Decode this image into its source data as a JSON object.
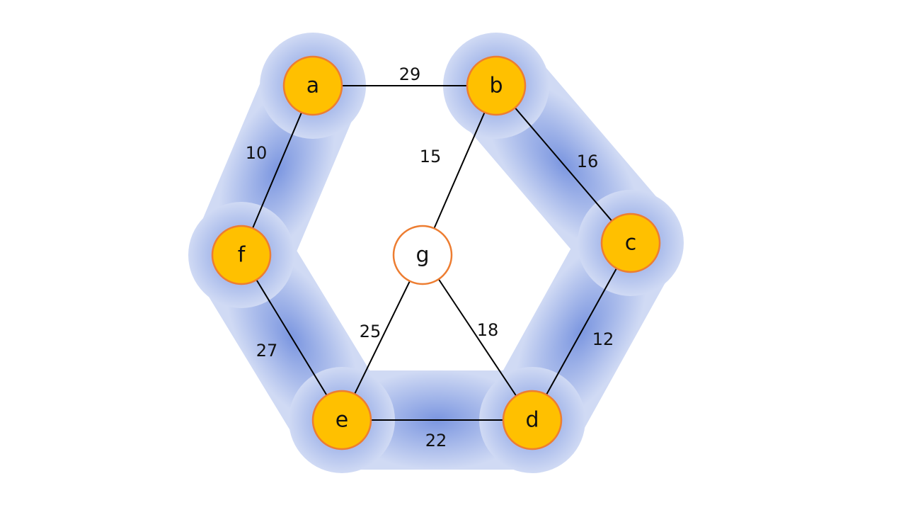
{
  "graph": {
    "nodes": [
      {
        "id": "a",
        "label": "a",
        "highlighted": true
      },
      {
        "id": "b",
        "label": "b",
        "highlighted": true
      },
      {
        "id": "c",
        "label": "c",
        "highlighted": true
      },
      {
        "id": "d",
        "label": "d",
        "highlighted": true
      },
      {
        "id": "e",
        "label": "e",
        "highlighted": true
      },
      {
        "id": "f",
        "label": "f",
        "highlighted": true
      },
      {
        "id": "g",
        "label": "g",
        "highlighted": false
      }
    ],
    "edges": [
      {
        "from": "a",
        "to": "b",
        "weight": "29",
        "in_tree": false
      },
      {
        "from": "a",
        "to": "f",
        "weight": "10",
        "in_tree": true
      },
      {
        "from": "b",
        "to": "c",
        "weight": "16",
        "in_tree": true
      },
      {
        "from": "b",
        "to": "g",
        "weight": "15",
        "in_tree": false
      },
      {
        "from": "c",
        "to": "d",
        "weight": "12",
        "in_tree": true
      },
      {
        "from": "g",
        "to": "e",
        "weight": "25",
        "in_tree": false
      },
      {
        "from": "g",
        "to": "d",
        "weight": "18",
        "in_tree": false
      },
      {
        "from": "f",
        "to": "e",
        "weight": "27",
        "in_tree": true
      },
      {
        "from": "e",
        "to": "d",
        "weight": "22",
        "in_tree": true
      }
    ]
  },
  "colors": {
    "node_fill": "#FFC000",
    "node_stroke": "#ED7D31",
    "plain_node_fill": "#FFFFFF",
    "highlight_core": "#7B96E0",
    "highlight_edge": "#D0DAF4"
  }
}
